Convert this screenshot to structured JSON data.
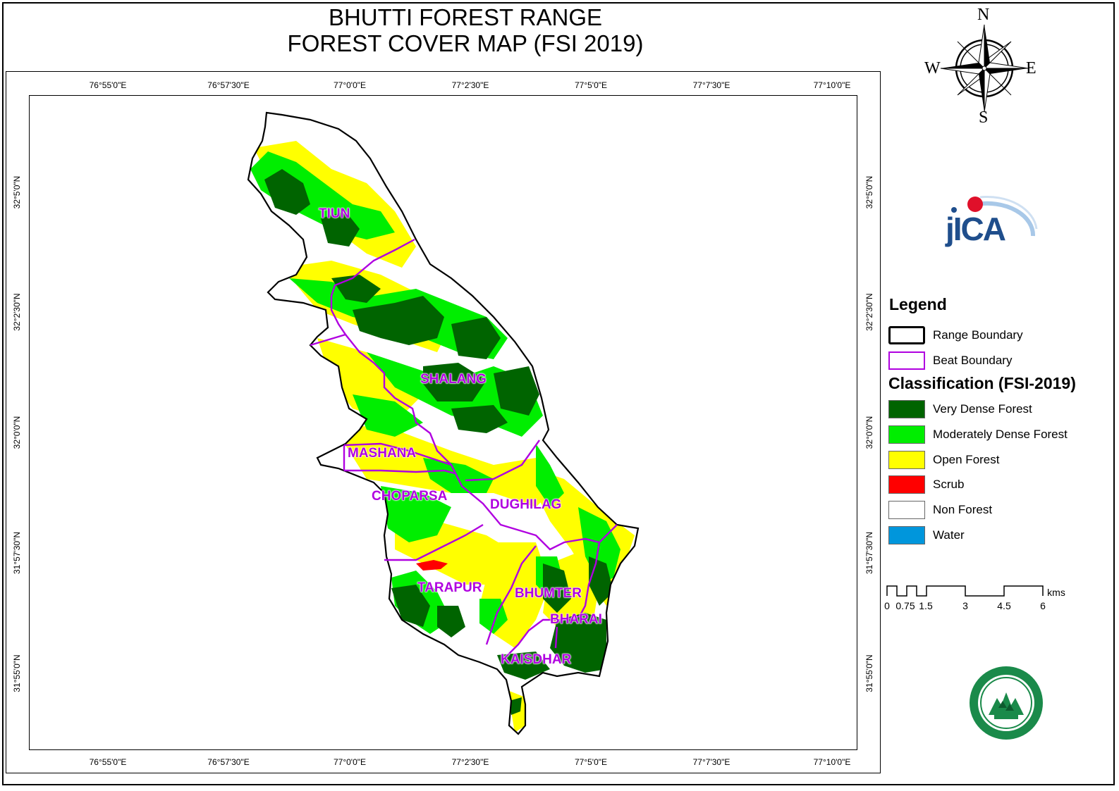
{
  "title": {
    "line1": "BHUTTI FOREST RANGE",
    "line2": "FOREST COVER MAP (FSI 2019)"
  },
  "graticule": {
    "longitudes": [
      "76°55'0\"E",
      "76°57'30\"E",
      "77°0'0\"E",
      "77°2'30\"E",
      "77°5'0\"E",
      "77°7'30\"E",
      "77°10'0\"E"
    ],
    "latitudes": [
      "32°5'0\"N",
      "32°2'30\"N",
      "32°0'0\"N",
      "31°57'30\"N",
      "31°55'0\"N"
    ]
  },
  "compass": {
    "north": "N",
    "south": "S",
    "east": "E",
    "west": "W"
  },
  "logo": {
    "jica_text": "JICA"
  },
  "beats": [
    "TIUN",
    "SHALANG",
    "MASHANA",
    "CHOPARSA",
    "DUGHILAG",
    "TARAPUR",
    "BHUMTER",
    "BHARAI",
    "KAISDHAR"
  ],
  "legend": {
    "title": "Legend",
    "boundaries": [
      {
        "label": "Range Boundary",
        "color": "#000000"
      },
      {
        "label": "Beat Boundary",
        "color": "#b000e0"
      }
    ],
    "classification_title": "Classification (FSI-2019)",
    "classes": [
      {
        "label": "Very Dense Forest",
        "color": "#006400"
      },
      {
        "label": "Moderately Dense Forest",
        "color": "#00ee00"
      },
      {
        "label": "Open Forest",
        "color": "#ffff00"
      },
      {
        "label": "Scrub",
        "color": "#ff0000"
      },
      {
        "label": "Non Forest",
        "color": "#ffffff"
      },
      {
        "label": "Water",
        "color": "#0096dc"
      }
    ]
  },
  "scale_bar": {
    "labels": [
      "0",
      "0.75",
      "1.5",
      "3",
      "4.5",
      "6"
    ],
    "unit": "kms"
  }
}
